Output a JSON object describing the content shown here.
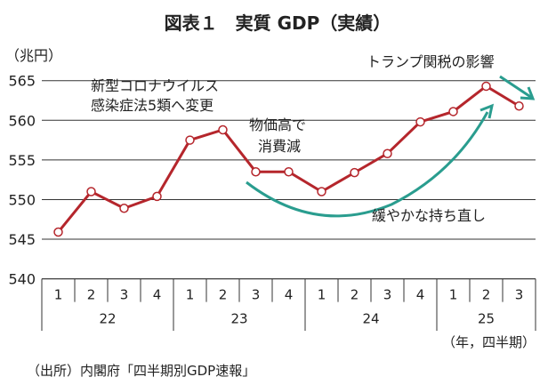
{
  "chart_data": {
    "type": "line",
    "title": "図表１　実質 GDP（実績）",
    "ylabel": "（兆円）",
    "xlabel": "（年，四半期）",
    "ylim": [
      540,
      565
    ],
    "yticks": [
      540,
      545,
      550,
      555,
      560,
      565
    ],
    "grid": true,
    "categories": [
      "1",
      "2",
      "3",
      "4",
      "1",
      "2",
      "3",
      "4",
      "1",
      "2",
      "3",
      "4",
      "1",
      "2",
      "3"
    ],
    "years": [
      {
        "label": "22",
        "quarters": 4
      },
      {
        "label": "23",
        "quarters": 4
      },
      {
        "label": "24",
        "quarters": 4
      },
      {
        "label": "25",
        "quarters": 3
      }
    ],
    "series": [
      {
        "name": "実質GDP",
        "color": "#b5262c",
        "values": [
          545.9,
          551.0,
          548.9,
          550.4,
          557.5,
          558.8,
          553.5,
          553.5,
          551.0,
          553.4,
          555.8,
          559.8,
          561.1,
          564.3,
          561.8
        ]
      }
    ],
    "annotations": {
      "covid": [
        "新型コロナウイルス",
        "感染症法5類へ変更"
      ],
      "prices": [
        "物価高で",
        "消費減"
      ],
      "recovery": "緩やかな持ち直し",
      "trump": "トランプ関税の影響"
    },
    "arrow_color": "#2a9d8f",
    "source": "（出所）内閣府「四半期別GDP速報」"
  }
}
